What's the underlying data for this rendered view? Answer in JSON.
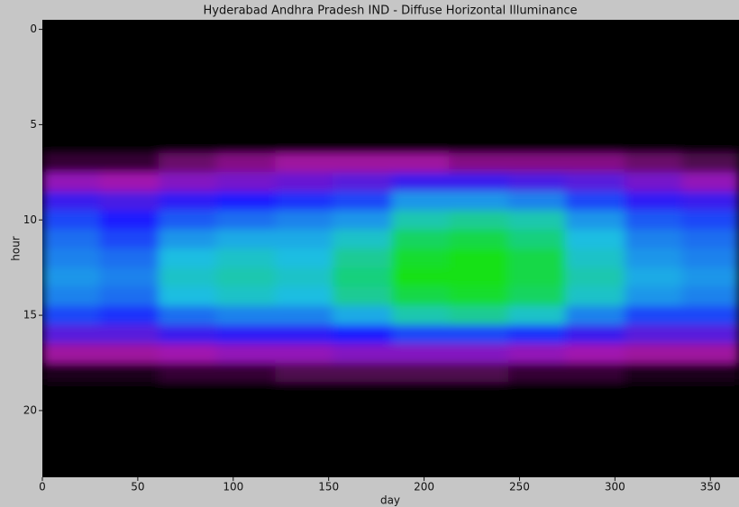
{
  "chart_data": {
    "type": "heatmap",
    "title": "Hyderabad Andhra Pradesh IND - Diffuse Horizontal Illuminance",
    "xlabel": "day",
    "ylabel": "hour",
    "xlim": [
      0,
      365
    ],
    "ylim": [
      23.5,
      -0.5
    ],
    "xticks": [
      0,
      50,
      100,
      150,
      200,
      250,
      300,
      350
    ],
    "yticks": [
      0,
      5,
      10,
      15,
      20
    ],
    "xbins": [
      0,
      30,
      61,
      91,
      122,
      152,
      183,
      213,
      244,
      274,
      305,
      335,
      365
    ],
    "y": [
      0,
      1,
      2,
      3,
      4,
      5,
      6,
      7,
      8,
      9,
      10,
      11,
      12,
      13,
      14,
      15,
      16,
      17,
      18,
      19,
      20,
      21,
      22,
      23
    ],
    "values": [
      [
        0,
        0,
        0,
        0,
        0,
        0,
        0,
        0,
        0,
        0,
        0,
        0
      ],
      [
        0,
        0,
        0,
        0,
        0,
        0,
        0,
        0,
        0,
        0,
        0,
        0
      ],
      [
        0,
        0,
        0,
        0,
        0,
        0,
        0,
        0,
        0,
        0,
        0,
        0
      ],
      [
        0,
        0,
        0,
        0,
        0,
        0,
        0,
        0,
        0,
        0,
        0,
        0
      ],
      [
        0,
        0,
        0,
        0,
        0,
        0,
        0,
        0,
        0,
        0,
        0,
        0
      ],
      [
        0,
        0,
        0,
        0,
        0,
        0,
        0,
        0,
        0,
        0,
        0,
        0
      ],
      [
        0,
        0,
        0,
        0,
        0,
        0,
        0,
        0,
        0,
        0,
        0,
        0
      ],
      [
        2,
        2,
        4,
        5,
        6,
        6,
        6,
        5,
        5,
        5,
        4,
        3
      ],
      [
        8,
        7,
        9,
        10,
        11,
        12,
        14,
        14,
        13,
        12,
        10,
        8
      ],
      [
        14,
        13,
        15,
        16,
        17,
        18,
        22,
        22,
        21,
        18,
        15,
        14
      ],
      [
        18,
        16,
        19,
        20,
        21,
        22,
        26,
        27,
        26,
        22,
        19,
        18
      ],
      [
        20,
        18,
        22,
        23,
        23,
        25,
        29,
        30,
        28,
        24,
        21,
        20
      ],
      [
        21,
        20,
        24,
        25,
        24,
        27,
        31,
        32,
        30,
        25,
        22,
        21
      ],
      [
        22,
        21,
        25,
        26,
        25,
        28,
        32,
        32,
        30,
        26,
        23,
        22
      ],
      [
        21,
        20,
        24,
        25,
        24,
        27,
        30,
        31,
        29,
        25,
        22,
        21
      ],
      [
        18,
        17,
        20,
        21,
        21,
        23,
        26,
        27,
        25,
        21,
        18,
        18
      ],
      [
        12,
        12,
        14,
        15,
        15,
        16,
        18,
        18,
        17,
        14,
        12,
        12
      ],
      [
        6,
        6,
        7,
        8,
        8,
        9,
        9,
        9,
        8,
        7,
        6,
        6
      ],
      [
        1,
        1,
        2,
        2,
        3,
        3,
        3,
        3,
        2,
        2,
        1,
        1
      ],
      [
        0,
        0,
        0,
        0,
        0,
        0,
        0,
        0,
        0,
        0,
        0,
        0
      ],
      [
        0,
        0,
        0,
        0,
        0,
        0,
        0,
        0,
        0,
        0,
        0,
        0
      ],
      [
        0,
        0,
        0,
        0,
        0,
        0,
        0,
        0,
        0,
        0,
        0,
        0
      ],
      [
        0,
        0,
        0,
        0,
        0,
        0,
        0,
        0,
        0,
        0,
        0,
        0
      ],
      [
        0,
        0,
        0,
        0,
        0,
        0,
        0,
        0,
        0,
        0,
        0,
        0
      ]
    ]
  }
}
